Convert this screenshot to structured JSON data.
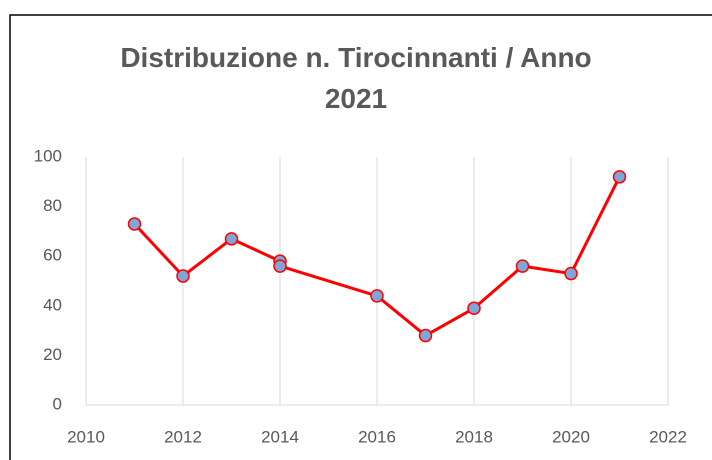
{
  "chart_data": {
    "type": "scatter",
    "title": "Distribuzione n. Tirocinnanti / Anno 2021",
    "x": [
      2011,
      2012,
      2013,
      2014,
      2014,
      2016,
      2017,
      2018,
      2019,
      2020,
      2021
    ],
    "series": [
      {
        "color": "#ff0000",
        "marker_color": "#7ea6d9",
        "values": [
          73,
          52,
          67,
          58,
          56,
          44,
          28,
          39,
          56,
          53,
          92
        ]
      }
    ],
    "xlim": [
      2010,
      2022
    ],
    "xticks": [
      2010,
      2012,
      2014,
      2016,
      2018,
      2020,
      2022
    ],
    "ylim": [
      0,
      100
    ],
    "yticks": [
      0,
      20,
      40,
      60,
      80,
      100
    ],
    "grid": "x"
  }
}
